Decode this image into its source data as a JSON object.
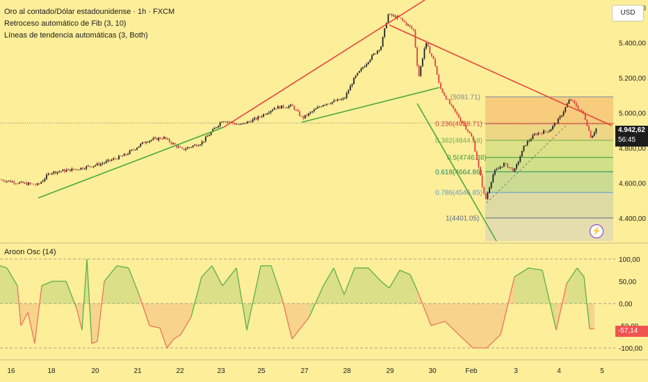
{
  "legend": {
    "symbol": "Oro al contado/Dólar estadounidense · 1h · FXCM",
    "fib": "Retroceso automático de Fib (3, 10)",
    "trend": "Líneas de tendencia automáticas (3, Both)",
    "osc": "Aroon Osc (14)"
  },
  "toolbar": {
    "currency": "USD"
  },
  "price_scale": {
    "labels": [
      "5.600,00",
      "5.400,00",
      "5.200,00",
      "5.000,00",
      "4.800,00",
      "4.600,00",
      "4.400,00"
    ],
    "last_price": "4.942,62",
    "countdown": "56:45"
  },
  "osc_scale": {
    "labels": [
      "100,00",
      "50,00",
      "0,00",
      "-50,00",
      "-100,00"
    ],
    "last_value": "-57,14"
  },
  "time_axis": {
    "labels": [
      "16",
      "18",
      "20",
      "21",
      "22",
      "23",
      "25",
      "27",
      "28",
      "29",
      "30",
      "Feb",
      "3",
      "4",
      "5"
    ]
  },
  "fib_levels": [
    {
      "ratio": "0",
      "label": "(5091.71)",
      "price": 5091.71
    },
    {
      "ratio": "0.236",
      "label": "0.236(4938.71)",
      "price": 4938.71
    },
    {
      "ratio": "0.382",
      "label": "0.382(4844.18)",
      "price": 4844.18
    },
    {
      "ratio": "0.5",
      "label": "0.5(4746.38)",
      "price": 4746.38
    },
    {
      "ratio": "0.618",
      "label": "0.618(4664.86)",
      "price": 4664.86
    },
    {
      "ratio": "0.786",
      "label": "0.786(4546.85)",
      "price": 4546.85
    },
    {
      "ratio": "1",
      "label": "1(4401.05)",
      "price": 4401.05
    }
  ],
  "colors": {
    "background": "#fdee9a",
    "up": "#1e1e1e",
    "down": "#e0403f",
    "trend_red": "#e8443a",
    "trend_green": "#49a83c",
    "osc_green": "#5fae47",
    "osc_red": "#e8775a",
    "last_price_bg": "#1d1d1d",
    "last_osc_bg": "#ef5350"
  },
  "chart_data": [
    {
      "type": "candlestick",
      "title": "Oro al contado/Dólar estadounidense · 1h · FXCM",
      "ylim": [
        4270,
        5620
      ],
      "x_ticks": [
        "16",
        "18",
        "20",
        "21",
        "22",
        "23",
        "25",
        "27",
        "28",
        "29",
        "30",
        "Feb",
        "3",
        "4",
        "5"
      ],
      "anchors": [
        [
          0,
          4620
        ],
        [
          30,
          4600
        ],
        [
          55,
          4590
        ],
        [
          72,
          4660
        ],
        [
          110,
          4680
        ],
        [
          145,
          4710
        ],
        [
          180,
          4760
        ],
        [
          210,
          4840
        ],
        [
          235,
          4860
        ],
        [
          262,
          4790
        ],
        [
          290,
          4830
        ],
        [
          320,
          4960
        ],
        [
          345,
          4930
        ],
        [
          370,
          4970
        ],
        [
          395,
          5030
        ],
        [
          420,
          5040
        ],
        [
          435,
          4970
        ],
        [
          465,
          5050
        ],
        [
          495,
          5080
        ],
        [
          510,
          5200
        ],
        [
          530,
          5300
        ],
        [
          548,
          5380
        ],
        [
          558,
          5560
        ],
        [
          575,
          5540
        ],
        [
          595,
          5470
        ],
        [
          602,
          5200
        ],
        [
          612,
          5400
        ],
        [
          625,
          5290
        ],
        [
          632,
          5150
        ],
        [
          650,
          5030
        ],
        [
          668,
          4930
        ],
        [
          680,
          4850
        ],
        [
          698,
          4500
        ],
        [
          710,
          4660
        ],
        [
          725,
          4710
        ],
        [
          740,
          4670
        ],
        [
          755,
          4820
        ],
        [
          770,
          4880
        ],
        [
          790,
          4900
        ],
        [
          805,
          4970
        ],
        [
          820,
          5080
        ],
        [
          840,
          4990
        ],
        [
          850,
          4860
        ],
        [
          860,
          4930
        ]
      ]
    },
    {
      "type": "area",
      "title": "Aroon Osc (14)",
      "ylim": [
        -100,
        100
      ],
      "anchors": [
        [
          0,
          85
        ],
        [
          10,
          80
        ],
        [
          25,
          40
        ],
        [
          30,
          -50
        ],
        [
          40,
          -20
        ],
        [
          50,
          -90
        ],
        [
          60,
          40
        ],
        [
          75,
          50
        ],
        [
          95,
          50
        ],
        [
          110,
          -10
        ],
        [
          118,
          -60
        ],
        [
          125,
          100
        ],
        [
          132,
          -90
        ],
        [
          140,
          -85
        ],
        [
          150,
          50
        ],
        [
          168,
          85
        ],
        [
          185,
          80
        ],
        [
          200,
          20
        ],
        [
          215,
          -50
        ],
        [
          230,
          -55
        ],
        [
          240,
          -100
        ],
        [
          250,
          -80
        ],
        [
          260,
          -70
        ],
        [
          275,
          -30
        ],
        [
          290,
          60
        ],
        [
          305,
          85
        ],
        [
          320,
          40
        ],
        [
          340,
          80
        ],
        [
          355,
          -60
        ],
        [
          375,
          85
        ],
        [
          390,
          85
        ],
        [
          405,
          15
        ],
        [
          420,
          -80
        ],
        [
          430,
          -60
        ],
        [
          445,
          -30
        ],
        [
          465,
          40
        ],
        [
          480,
          80
        ],
        [
          495,
          20
        ],
        [
          510,
          80
        ],
        [
          530,
          80
        ],
        [
          548,
          50
        ],
        [
          560,
          35
        ],
        [
          575,
          75
        ],
        [
          590,
          65
        ],
        [
          600,
          30
        ],
        [
          620,
          -50
        ],
        [
          640,
          -40
        ],
        [
          660,
          -70
        ],
        [
          680,
          -100
        ],
        [
          700,
          -100
        ],
        [
          720,
          -70
        ],
        [
          740,
          60
        ],
        [
          760,
          80
        ],
        [
          780,
          75
        ],
        [
          800,
          -60
        ],
        [
          815,
          45
        ],
        [
          830,
          80
        ],
        [
          840,
          60
        ],
        [
          848,
          -57
        ],
        [
          855,
          -57
        ]
      ]
    }
  ]
}
